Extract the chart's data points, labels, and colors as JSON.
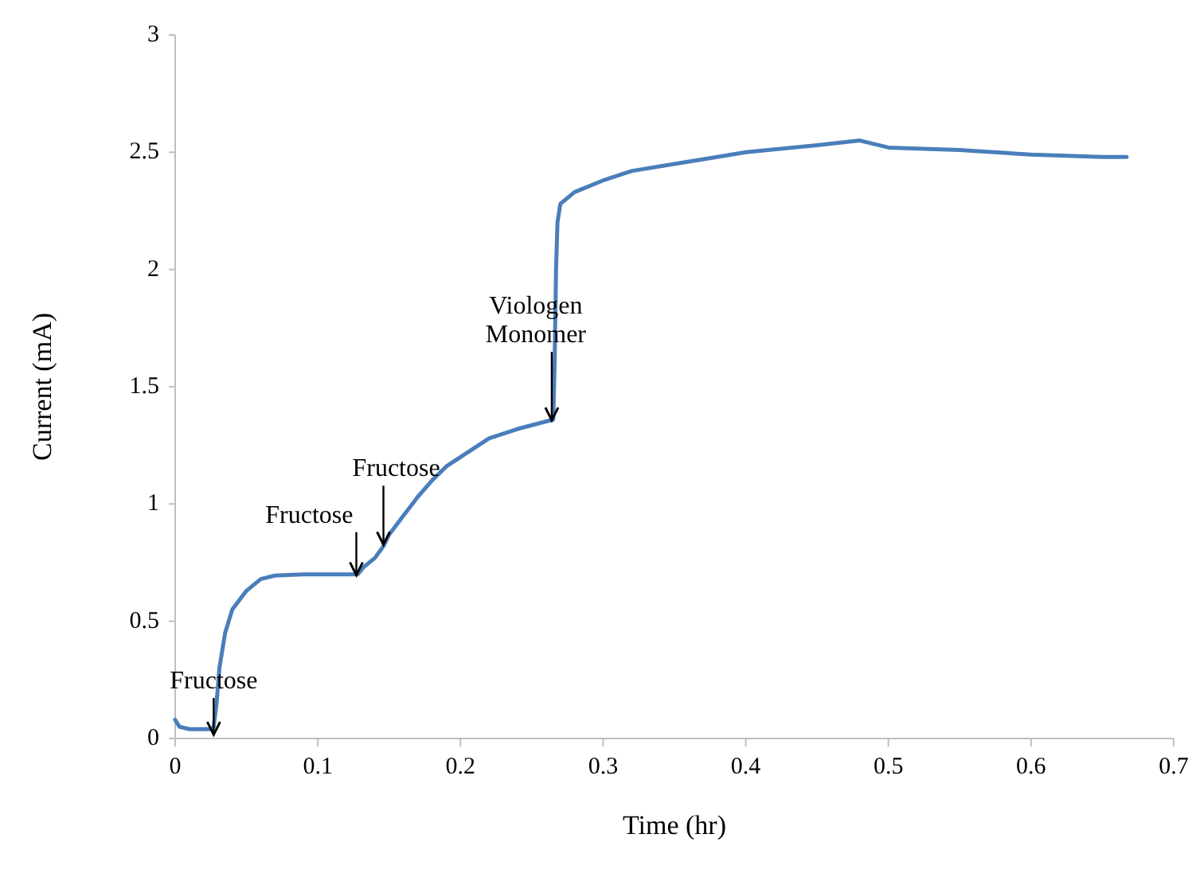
{
  "chart_data": {
    "type": "line",
    "xlabel": "Time (hr)",
    "ylabel": "Current (mA)",
    "xlim": [
      0,
      0.7
    ],
    "xticks": [
      0,
      0.1,
      0.2,
      0.3,
      0.4,
      0.5,
      0.6,
      0.7
    ],
    "ylim": [
      0,
      3
    ],
    "yticks": [
      0,
      0.5,
      1,
      1.5,
      2,
      2.5,
      3
    ],
    "grid": false,
    "x": [
      0,
      0.003,
      0.01,
      0.025,
      0.027,
      0.029,
      0.031,
      0.035,
      0.04,
      0.05,
      0.06,
      0.07,
      0.09,
      0.11,
      0.128,
      0.132,
      0.14,
      0.146,
      0.15,
      0.16,
      0.17,
      0.18,
      0.19,
      0.2,
      0.21,
      0.22,
      0.24,
      0.265,
      0.266,
      0.267,
      0.268,
      0.27,
      0.28,
      0.3,
      0.32,
      0.35,
      0.38,
      0.4,
      0.45,
      0.48,
      0.5,
      0.55,
      0.6,
      0.65,
      0.667
    ],
    "series": [
      {
        "color": "#4a7ebb",
        "values": [
          0.08,
          0.05,
          0.04,
          0.04,
          0.05,
          0.15,
          0.3,
          0.45,
          0.55,
          0.63,
          0.68,
          0.695,
          0.7,
          0.7,
          0.7,
          0.73,
          0.77,
          0.82,
          0.87,
          0.95,
          1.03,
          1.1,
          1.16,
          1.2,
          1.24,
          1.28,
          1.32,
          1.36,
          1.6,
          2.0,
          2.2,
          2.28,
          2.33,
          2.38,
          2.42,
          2.45,
          2.48,
          2.5,
          2.53,
          2.55,
          2.52,
          2.51,
          2.49,
          2.48,
          2.48
        ]
      }
    ],
    "annotations": [
      {
        "text": "Fructose",
        "x": 0.027,
        "y": 0.01
      },
      {
        "text": "Fructose",
        "x": 0.127,
        "y": 0.69
      },
      {
        "text": "Fructose",
        "x": 0.146,
        "y": 0.82
      },
      {
        "text": "Viologen Monomer",
        "x": 0.264,
        "y": 1.35
      }
    ]
  }
}
